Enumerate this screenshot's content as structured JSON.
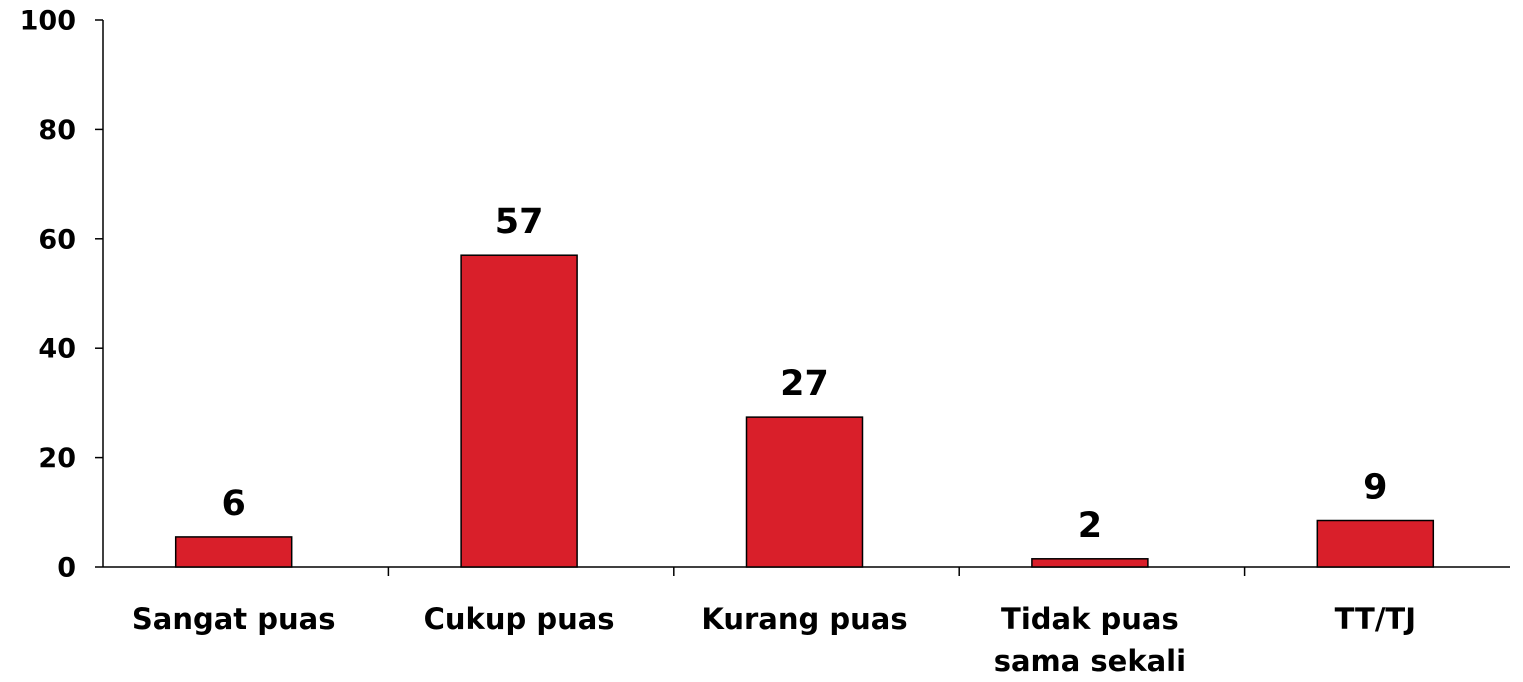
{
  "chart_data": {
    "type": "bar",
    "categories": [
      "Sangat puas",
      "Cukup puas",
      "Kurang puas",
      "Tidak puas sama sekali",
      "TT/TJ"
    ],
    "values": [
      5.5,
      57,
      27.4,
      1.5,
      8.5
    ],
    "value_labels": [
      "6",
      "57",
      "27",
      "2",
      "9"
    ],
    "color": "#d91f2a",
    "ylim": [
      0,
      100
    ],
    "yticks": [
      0,
      20,
      40,
      60,
      80,
      100
    ],
    "grid": false
  }
}
